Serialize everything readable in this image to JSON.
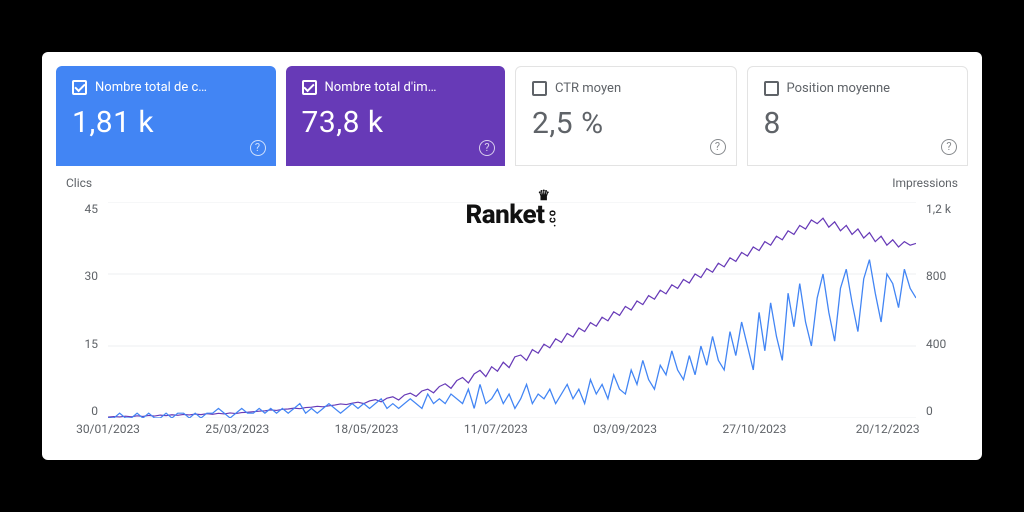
{
  "cards": [
    {
      "id": "clicks",
      "label": "Nombre total de c…",
      "value": "1,81 k",
      "checked": true,
      "active": true,
      "bg": "#4285f4",
      "fg": "#ffffff"
    },
    {
      "id": "impressions",
      "label": "Nombre total d'im…",
      "value": "73,8 k",
      "checked": true,
      "active": true,
      "bg": "#673ab7",
      "fg": "#ffffff"
    },
    {
      "id": "ctr",
      "label": "CTR moyen",
      "value": "2,5 %",
      "checked": false,
      "active": false,
      "bg": "#ffffff",
      "fg": "#5f6368"
    },
    {
      "id": "position",
      "label": "Position moyenne",
      "value": "8",
      "checked": false,
      "active": false,
      "bg": "#ffffff",
      "fg": "#5f6368"
    }
  ],
  "chart": {
    "type": "line-dual-axis",
    "left_axis": {
      "title": "Clics",
      "min": 0,
      "max": 45,
      "ticks": [
        45,
        30,
        15,
        0
      ]
    },
    "right_axis": {
      "title": "Impressions",
      "min": 0,
      "max": 1200,
      "ticks": [
        "1,2 k",
        800,
        400,
        0
      ]
    },
    "x_ticks": [
      {
        "pos": 0.0,
        "label": "30/01/2023"
      },
      {
        "pos": 0.16,
        "label": "25/03/2023"
      },
      {
        "pos": 0.32,
        "label": "18/05/2023"
      },
      {
        "pos": 0.48,
        "label": "11/07/2023"
      },
      {
        "pos": 0.64,
        "label": "03/09/2023"
      },
      {
        "pos": 0.8,
        "label": "27/10/2023"
      },
      {
        "pos": 0.965,
        "label": "20/12/2023"
      }
    ],
    "grid_color": "#e8eaed",
    "background": "#ffffff",
    "series": {
      "clicks": {
        "color": "#4285f4",
        "stroke_width": 1.6,
        "values": [
          0,
          0,
          1,
          0,
          0,
          1,
          0,
          1,
          0,
          0,
          1,
          0,
          1,
          1,
          0,
          1,
          0,
          1,
          1,
          2,
          1,
          0,
          1,
          2,
          1,
          1,
          2,
          1,
          2,
          1,
          2,
          1,
          2,
          3,
          1,
          2,
          1,
          2,
          3,
          2,
          1,
          2,
          3,
          2,
          3,
          2,
          3,
          4,
          2,
          3,
          2,
          3,
          4,
          3,
          2,
          5,
          3,
          4,
          3,
          5,
          4,
          3,
          6,
          2,
          7,
          3,
          4,
          6,
          3,
          5,
          2,
          4,
          7,
          3,
          5,
          4,
          6,
          3,
          5,
          7,
          4,
          6,
          3,
          8,
          5,
          7,
          4,
          9,
          6,
          5,
          10,
          7,
          12,
          8,
          6,
          11,
          9,
          14,
          10,
          8,
          13,
          9,
          15,
          11,
          17,
          12,
          10,
          18,
          13,
          20,
          15,
          10,
          22,
          14,
          24,
          17,
          12,
          26,
          19,
          28,
          20,
          15,
          25,
          30,
          22,
          16,
          27,
          31,
          24,
          18,
          29,
          33,
          26,
          20,
          30,
          28,
          23,
          31,
          27,
          25
        ]
      },
      "impressions": {
        "color": "#673ab7",
        "stroke_width": 1.6,
        "values": [
          5,
          8,
          6,
          10,
          7,
          12,
          9,
          14,
          11,
          16,
          13,
          18,
          15,
          20,
          17,
          22,
          19,
          24,
          21,
          26,
          23,
          28,
          25,
          30,
          32,
          35,
          38,
          40,
          45,
          42,
          48,
          50,
          55,
          52,
          58,
          60,
          65,
          62,
          68,
          72,
          78,
          75,
          82,
          88,
          80,
          95,
          102,
          90,
          110,
          118,
          100,
          128,
          138,
          120,
          150,
          160,
          140,
          175,
          190,
          165,
          208,
          225,
          195,
          245,
          265,
          230,
          285,
          260,
          310,
          280,
          340,
          350,
          320,
          380,
          360,
          410,
          390,
          440,
          420,
          470,
          450,
          500,
          480,
          530,
          510,
          560,
          540,
          590,
          570,
          620,
          600,
          650,
          630,
          680,
          660,
          710,
          690,
          740,
          720,
          770,
          750,
          800,
          780,
          830,
          810,
          860,
          840,
          890,
          870,
          920,
          900,
          950,
          930,
          980,
          960,
          1010,
          990,
          1040,
          1020,
          1070,
          1050,
          1100,
          1080,
          1110,
          1060,
          1090,
          1040,
          1070,
          1020,
          1050,
          1000,
          1030,
          980,
          1010,
          960,
          990,
          950,
          980,
          960,
          970
        ]
      }
    }
  },
  "brand": {
    "name": "Ranket",
    "suffix": ".co"
  }
}
